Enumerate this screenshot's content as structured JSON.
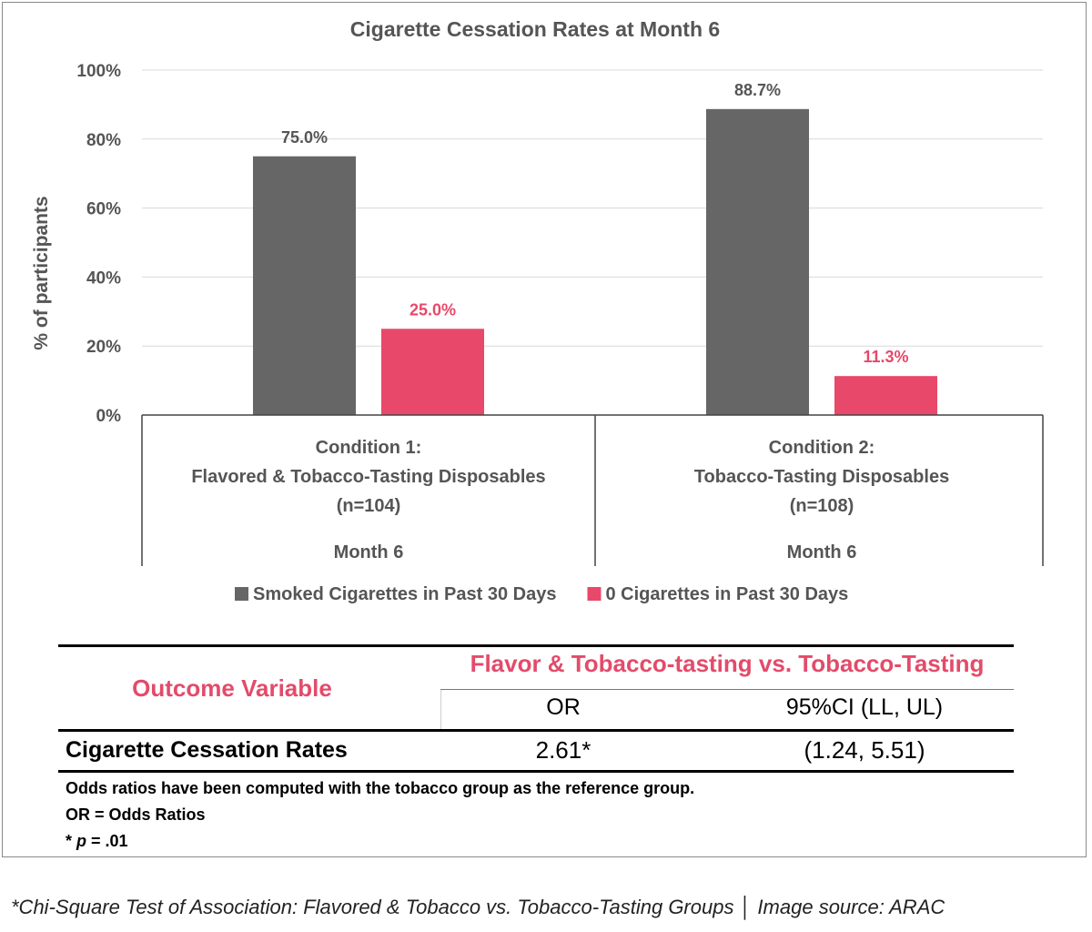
{
  "chart_data": {
    "type": "bar",
    "title": "Cigarette Cessation Rates at Month 6",
    "ylabel": "% of participants",
    "xlabel": "",
    "ylim": [
      0,
      100
    ],
    "yticks": [
      "0%",
      "20%",
      "40%",
      "60%",
      "80%",
      "100%"
    ],
    "ytick_values": [
      0,
      20,
      40,
      60,
      80,
      100
    ],
    "grid": true,
    "legend_position": "bottom",
    "categories": [
      {
        "lines": [
          "Condition 1:",
          "Flavored & Tobacco-Tasting Disposables",
          "(n=104)"
        ],
        "group_label": "Month 6"
      },
      {
        "lines": [
          "Condition 2:",
          "Tobacco-Tasting Disposables",
          "(n=108)"
        ],
        "group_label": "Month 6"
      }
    ],
    "series": [
      {
        "name": "Smoked Cigarettes in Past 30 Days",
        "color": "#666666",
        "label_color": "#555555",
        "values": [
          75.0,
          88.7
        ],
        "labels": [
          "75.0%",
          "88.7%"
        ]
      },
      {
        "name": "0 Cigarettes in Past 30 Days",
        "color": "#e8486a",
        "label_color": "#e8486a",
        "values": [
          25.0,
          11.3
        ],
        "labels": [
          "25.0%",
          "11.3%"
        ]
      }
    ]
  },
  "stats_table": {
    "outcome_header": "Outcome Variable",
    "comparison_header": "Flavor & Tobacco-tasting vs. Tobacco-Tasting",
    "col_or": "OR",
    "col_ci": "95%CI (LL, UL)",
    "row": {
      "label": "Cigarette Cessation Rates",
      "or": "2.61*",
      "ci": "(1.24, 5.51)"
    },
    "notes": {
      "reference": "Odds ratios have been computed with the tobacco group as the reference group.",
      "or_def": "OR = Odds Ratios",
      "p_prefix": "* ",
      "p_symbol": "p",
      "p_value": " = .01"
    },
    "accent_color": "#e34b6a"
  },
  "caption": "*Chi-Square Test of Association: Flavored & Tobacco vs. Tobacco-Tasting Groups │ Image source: ARAC"
}
